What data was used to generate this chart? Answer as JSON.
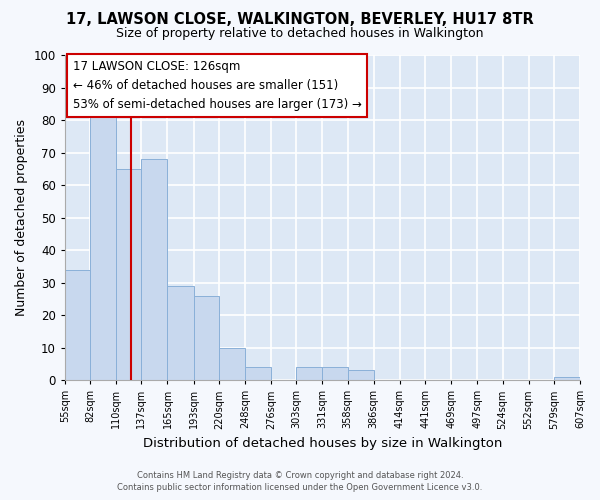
{
  "title": "17, LAWSON CLOSE, WALKINGTON, BEVERLEY, HU17 8TR",
  "subtitle": "Size of property relative to detached houses in Walkington",
  "xlabel": "Distribution of detached houses by size in Walkington",
  "ylabel": "Number of detached properties",
  "bar_color": "#c8d8ee",
  "bar_edge_color": "#8ab0d8",
  "background_color": "#dde8f5",
  "fig_background_color": "#f5f8fd",
  "grid_color": "#ffffff",
  "vline_x": 126,
  "vline_color": "#cc0000",
  "bin_edges": [
    55,
    82,
    110,
    137,
    165,
    193,
    220,
    248,
    276,
    303,
    331,
    358,
    386,
    414,
    441,
    469,
    497,
    524,
    552,
    579,
    607
  ],
  "bar_heights": [
    34,
    82,
    65,
    68,
    29,
    26,
    10,
    4,
    0,
    4,
    4,
    3,
    0,
    0,
    0,
    0,
    0,
    0,
    0,
    1
  ],
  "ylim": [
    0,
    100
  ],
  "yticks": [
    0,
    10,
    20,
    30,
    40,
    50,
    60,
    70,
    80,
    90,
    100
  ],
  "annotation_text": "17 LAWSON CLOSE: 126sqm\n← 46% of detached houses are smaller (151)\n53% of semi-detached houses are larger (173) →",
  "annotation_box_color": "#ffffff",
  "annotation_border_color": "#cc0000",
  "footer_line1": "Contains HM Land Registry data © Crown copyright and database right 2024.",
  "footer_line2": "Contains public sector information licensed under the Open Government Licence v3.0.",
  "tick_labels": [
    "55sqm",
    "82sqm",
    "110sqm",
    "137sqm",
    "165sqm",
    "193sqm",
    "220sqm",
    "248sqm",
    "276sqm",
    "303sqm",
    "331sqm",
    "358sqm",
    "386sqm",
    "414sqm",
    "441sqm",
    "469sqm",
    "497sqm",
    "524sqm",
    "552sqm",
    "579sqm",
    "607sqm"
  ]
}
